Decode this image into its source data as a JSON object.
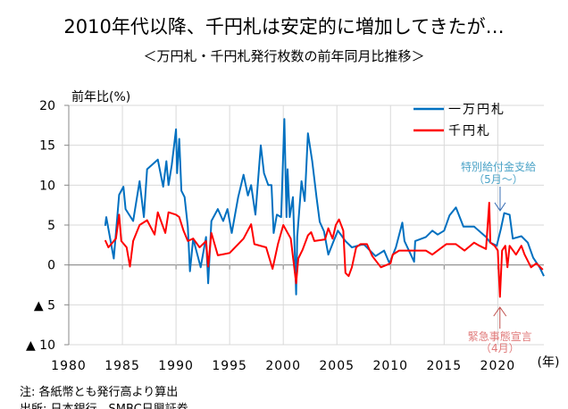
{
  "chart_data": {
    "type": "line",
    "title": "2010年代以降、千円札は安定的に増加してきたが…",
    "subtitle": "＜万円札・千円札発行枚数の前年同月比推移＞",
    "ylabel": "前年比(%)",
    "xlabel": "(年)",
    "xlim": [
      1980,
      2024.3
    ],
    "ylim": [
      -10,
      20
    ],
    "xticks": [
      1980,
      1985,
      1990,
      1995,
      2000,
      2005,
      2010,
      2015,
      2020
    ],
    "xtick_labels": [
      "1980",
      "1985",
      "1990",
      "1995",
      "2000",
      "2005",
      "2010",
      "2015",
      "2020"
    ],
    "yticks": [
      20,
      15,
      10,
      5,
      0,
      -5,
      -10
    ],
    "ytick_labels": [
      "20",
      "15",
      "10",
      "5",
      "0",
      "▲ 5",
      "▲ 10"
    ],
    "grid": true,
    "legend_position": "top-right",
    "series": [
      {
        "name": "一万円札",
        "color": "#0070c0",
        "points": [
          [
            1983.4,
            4.9
          ],
          [
            1983.5,
            6
          ],
          [
            1984.2,
            0.8
          ],
          [
            1984.7,
            8.8
          ],
          [
            1985.1,
            9.8
          ],
          [
            1985.3,
            7
          ],
          [
            1986.0,
            5.5
          ],
          [
            1986.6,
            10.5
          ],
          [
            1987.0,
            6
          ],
          [
            1987.3,
            12
          ],
          [
            1988.3,
            13.2
          ],
          [
            1988.8,
            9.8
          ],
          [
            1989.1,
            13
          ],
          [
            1989.3,
            10
          ],
          [
            1989.6,
            12.5
          ],
          [
            1990.0,
            17
          ],
          [
            1990.1,
            11.5
          ],
          [
            1990.3,
            15.8
          ],
          [
            1990.5,
            9.3
          ],
          [
            1990.8,
            8.5
          ],
          [
            1991.1,
            4.8
          ],
          [
            1991.3,
            -0.8
          ],
          [
            1991.6,
            3.3
          ],
          [
            1992.3,
            -0.3
          ],
          [
            1992.8,
            3.5
          ],
          [
            1993.0,
            -2.3
          ],
          [
            1993.3,
            5.5
          ],
          [
            1993.9,
            7
          ],
          [
            1994.4,
            5.5
          ],
          [
            1994.8,
            7
          ],
          [
            1995.2,
            4
          ],
          [
            1995.8,
            8.5
          ],
          [
            1996.3,
            11.3
          ],
          [
            1996.7,
            8.7
          ],
          [
            1997.0,
            10
          ],
          [
            1997.4,
            6.3
          ],
          [
            1997.9,
            15
          ],
          [
            1998.2,
            11.5
          ],
          [
            1998.6,
            10
          ],
          [
            1998.9,
            10
          ],
          [
            1999.1,
            4
          ],
          [
            1999.4,
            6.3
          ],
          [
            1999.8,
            6
          ],
          [
            2000.1,
            18.3
          ],
          [
            2000.3,
            6
          ],
          [
            2000.4,
            12
          ],
          [
            2000.6,
            6
          ],
          [
            2000.9,
            8.5
          ],
          [
            2001.2,
            -3.7
          ],
          [
            2001.3,
            3.5
          ],
          [
            2001.7,
            10.5
          ],
          [
            2002.0,
            8
          ],
          [
            2002.3,
            16.5
          ],
          [
            2002.7,
            13
          ],
          [
            2003.1,
            8.5
          ],
          [
            2003.4,
            5.4
          ],
          [
            2003.8,
            4.2
          ],
          [
            2004.2,
            1.3
          ],
          [
            2004.7,
            3.0
          ],
          [
            2005.1,
            4.3
          ],
          [
            2005.8,
            3
          ],
          [
            2006.4,
            2.2
          ],
          [
            2007.5,
            2.6
          ],
          [
            2008.6,
            1.1
          ],
          [
            2009.4,
            1.8
          ],
          [
            2009.9,
            0.2
          ],
          [
            2010.5,
            2.2
          ],
          [
            2011.1,
            5.3
          ],
          [
            2011.3,
            3
          ],
          [
            2012.2,
            0.4
          ],
          [
            2012.3,
            3
          ],
          [
            2013.3,
            3.5
          ],
          [
            2013.9,
            4.3
          ],
          [
            2014.4,
            3.8
          ],
          [
            2015.0,
            4.3
          ],
          [
            2015.5,
            6.2
          ],
          [
            2016.1,
            7.2
          ],
          [
            2016.8,
            4.8
          ],
          [
            2017.8,
            4.8
          ],
          [
            2018.9,
            3.5
          ],
          [
            2019.3,
            2.8
          ],
          [
            2019.9,
            2.4
          ],
          [
            2020.3,
            4.6
          ],
          [
            2020.6,
            6.5
          ],
          [
            2021.1,
            6.3
          ],
          [
            2021.4,
            3.3
          ],
          [
            2022.2,
            3.6
          ],
          [
            2022.8,
            2.8
          ],
          [
            2023.3,
            0.9
          ],
          [
            2023.9,
            -0.3
          ],
          [
            2024.3,
            -1.4
          ]
        ]
      },
      {
        "name": "千円札",
        "color": "#ff0000",
        "points": [
          [
            1983.4,
            3.1
          ],
          [
            1983.7,
            2.2
          ],
          [
            1984.4,
            3.3
          ],
          [
            1984.7,
            6.3
          ],
          [
            1984.9,
            3
          ],
          [
            1985.4,
            2.2
          ],
          [
            1985.7,
            -0.2
          ],
          [
            1986.0,
            3
          ],
          [
            1986.6,
            5
          ],
          [
            1987.3,
            5.6
          ],
          [
            1988.0,
            3.8
          ],
          [
            1988.3,
            6.6
          ],
          [
            1989.0,
            4
          ],
          [
            1989.3,
            6.6
          ],
          [
            1990.0,
            6.3
          ],
          [
            1990.3,
            6
          ],
          [
            1990.7,
            4.3
          ],
          [
            1991.1,
            3
          ],
          [
            1991.6,
            3.3
          ],
          [
            1992.2,
            2.2
          ],
          [
            1992.8,
            3
          ],
          [
            1993.0,
            -0.2
          ],
          [
            1993.3,
            4
          ],
          [
            1993.9,
            1.2
          ],
          [
            1995.0,
            1.5
          ],
          [
            1995.8,
            2.6
          ],
          [
            1996.3,
            3.3
          ],
          [
            1997.0,
            5.1
          ],
          [
            1997.3,
            2.6
          ],
          [
            1998.4,
            2.2
          ],
          [
            1999.0,
            -0.5
          ],
          [
            1999.5,
            2.6
          ],
          [
            2000.0,
            5
          ],
          [
            2000.7,
            3.3
          ],
          [
            2001.2,
            -2.3
          ],
          [
            2001.4,
            0.8
          ],
          [
            2001.8,
            1.9
          ],
          [
            2002.3,
            3.7
          ],
          [
            2002.6,
            4.1
          ],
          [
            2002.9,
            3
          ],
          [
            2003.9,
            3.2
          ],
          [
            2004.2,
            4.6
          ],
          [
            2004.6,
            3.3
          ],
          [
            2004.9,
            5
          ],
          [
            2005.2,
            5.7
          ],
          [
            2005.6,
            4.3
          ],
          [
            2005.8,
            -1
          ],
          [
            2006.1,
            -1.4
          ],
          [
            2006.4,
            -0.3
          ],
          [
            2006.8,
            2.2
          ],
          [
            2007.2,
            2.6
          ],
          [
            2007.8,
            2.6
          ],
          [
            2008.3,
            1.1
          ],
          [
            2009.1,
            -0.3
          ],
          [
            2010.0,
            0.2
          ],
          [
            2010.2,
            1.3
          ],
          [
            2010.8,
            1.8
          ],
          [
            2011.3,
            1.8
          ],
          [
            2012.2,
            1.8
          ],
          [
            2013.3,
            1.8
          ],
          [
            2013.9,
            1.3
          ],
          [
            2014.4,
            1.8
          ],
          [
            2015.2,
            2.6
          ],
          [
            2016.1,
            2.6
          ],
          [
            2016.9,
            1.8
          ],
          [
            2017.8,
            2.8
          ],
          [
            2018.3,
            2.4
          ],
          [
            2018.9,
            2
          ],
          [
            2019.2,
            7.8
          ],
          [
            2019.3,
            2.8
          ],
          [
            2019.7,
            2.4
          ],
          [
            2020.0,
            1.8
          ],
          [
            2020.2,
            -4
          ],
          [
            2020.4,
            1.8
          ],
          [
            2020.7,
            2.4
          ],
          [
            2020.9,
            -0.3
          ],
          [
            2021.1,
            2.4
          ],
          [
            2021.7,
            1.3
          ],
          [
            2022.2,
            2.4
          ],
          [
            2022.5,
            1.3
          ],
          [
            2023.1,
            -0.3
          ],
          [
            2023.6,
            0.2
          ],
          [
            2024.2,
            -0.6
          ]
        ]
      }
    ],
    "annotations": [
      {
        "text": "特別給付金支給",
        "text2": "（5月～）",
        "x": 2020.3,
        "arrow_to_y": 6.8,
        "color": "#4ba3c7",
        "arrow_color": "#3a6fb5"
      },
      {
        "text": "緊急事態宣言",
        "text2": "（4月）",
        "x": 2020.2,
        "arrow_to_y": -5.3,
        "color": "#e07a7a",
        "arrow_color": "#c0504d"
      }
    ]
  },
  "notes": [
    "注: 各紙幣とも発行高より算出",
    "出所: 日本銀行、SMBC日興証券"
  ]
}
